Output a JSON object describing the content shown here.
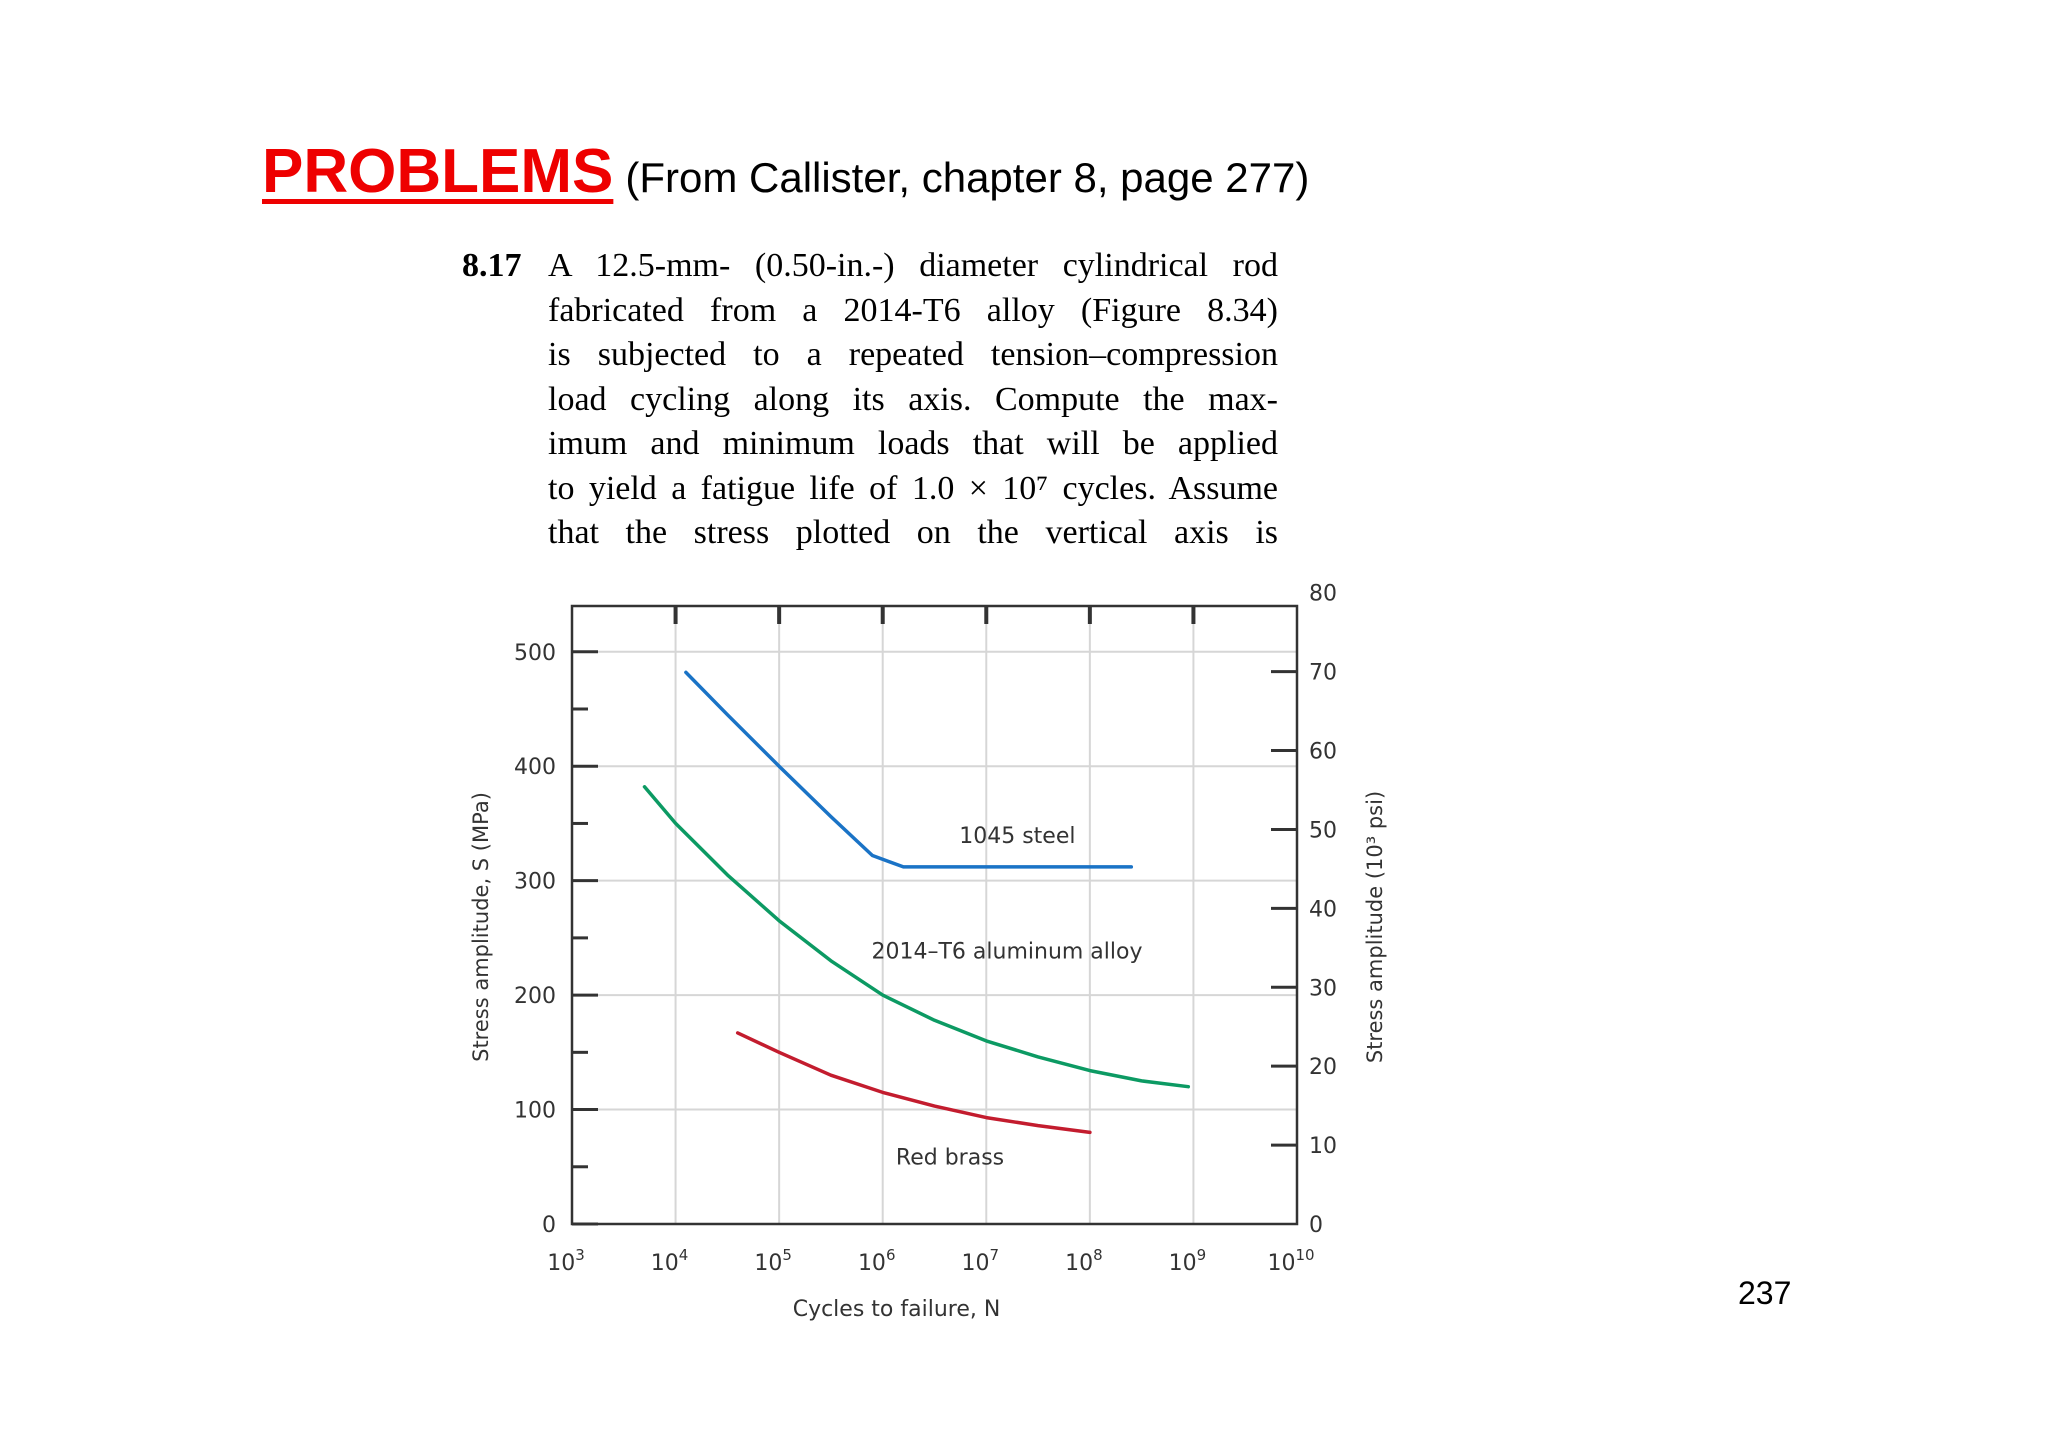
{
  "header": {
    "title": "PROBLEMS",
    "subtitle": "(From Callister, chapter 8, page 277)"
  },
  "problem": {
    "number": "8.17",
    "lines": [
      "A 12.5-mm- (0.50-in.-) diameter cylindrical rod",
      "fabricated from a 2014-T6 alloy (Figure 8.34)",
      "is subjected to a repeated tension–compression",
      "load cycling along its axis. Compute the max-",
      "imum and minimum loads that will be applied",
      "to yield a fatigue life of 1.0 × 10⁷ cycles. Assume",
      "that the stress plotted on the vertical axis is"
    ]
  },
  "page_number": "237",
  "chart_data": {
    "type": "line",
    "xlabel": "Cycles to failure, N",
    "ylabel": "Stress amplitude, S (MPa)",
    "y2label": "Stress amplitude (10³ psi)",
    "xscale": "log",
    "xlim_exponent": [
      3,
      10
    ],
    "ylim": [
      0,
      500
    ],
    "y2lim": [
      0,
      80
    ],
    "x_ticks": [
      {
        "base": "10",
        "exp": "3"
      },
      {
        "base": "10",
        "exp": "4"
      },
      {
        "base": "10",
        "exp": "5"
      },
      {
        "base": "10",
        "exp": "6"
      },
      {
        "base": "10",
        "exp": "7"
      },
      {
        "base": "10",
        "exp": "8"
      },
      {
        "base": "10",
        "exp": "9"
      },
      {
        "base": "10",
        "exp": "10"
      }
    ],
    "y_ticks": [
      "0",
      "100",
      "200",
      "300",
      "400",
      "500"
    ],
    "y2_ticks": [
      "0",
      "10",
      "20",
      "30",
      "40",
      "50",
      "60",
      "70",
      "80"
    ],
    "grid": true,
    "series": [
      {
        "name": "1045 steel",
        "color": "#1a73c6",
        "log10N": [
          4.1,
          4.5,
          5.0,
          5.5,
          5.9,
          6.2,
          6.5,
          7.0,
          7.5,
          8.0,
          8.4
        ],
        "stress_MPa": [
          482,
          445,
          400,
          356,
          322,
          312,
          312,
          312,
          312,
          312,
          312
        ]
      },
      {
        "name": "2014–T6 aluminum alloy",
        "color": "#0c9a63",
        "log10N": [
          3.7,
          4.0,
          4.5,
          5.0,
          5.5,
          6.0,
          6.5,
          7.0,
          7.5,
          8.0,
          8.5,
          8.95
        ],
        "stress_MPa": [
          382,
          350,
          305,
          265,
          230,
          200,
          178,
          160,
          146,
          134,
          125,
          120
        ]
      },
      {
        "name": "Red brass",
        "color": "#c31c2e",
        "log10N": [
          4.6,
          5.0,
          5.5,
          6.0,
          6.5,
          7.0,
          7.5,
          8.0
        ],
        "stress_MPa": [
          167,
          150,
          130,
          115,
          103,
          93,
          86,
          80
        ]
      }
    ]
  }
}
